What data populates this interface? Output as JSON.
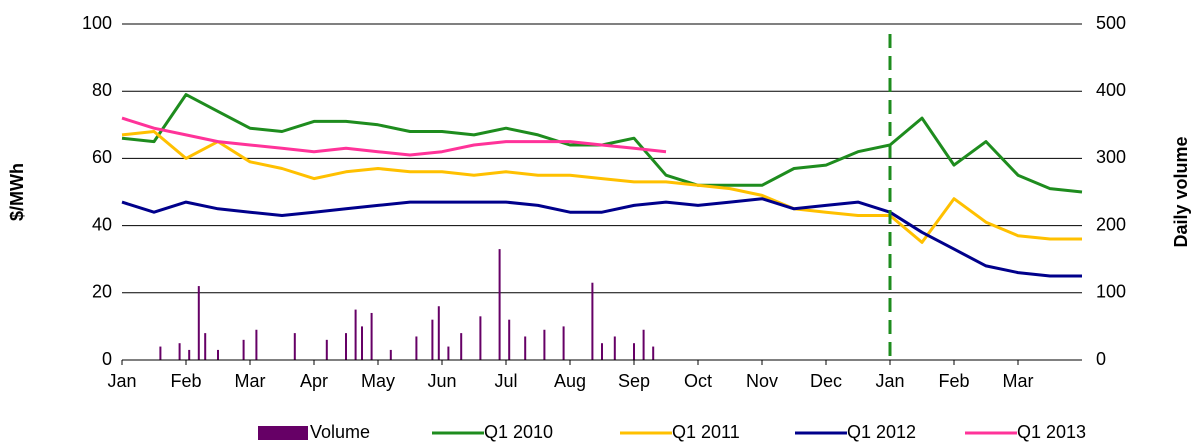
{
  "chart_data": {
    "type": "line",
    "y_label": "$/MWh",
    "y2_label": "Daily volume",
    "xlim": [
      0,
      15
    ],
    "xticks": [
      {
        "value": 0,
        "label": "Jan"
      },
      {
        "value": 1,
        "label": "Feb"
      },
      {
        "value": 2,
        "label": "Mar"
      },
      {
        "value": 3,
        "label": "Apr"
      },
      {
        "value": 4,
        "label": "May"
      },
      {
        "value": 5,
        "label": "Jun"
      },
      {
        "value": 6,
        "label": "Jul"
      },
      {
        "value": 7,
        "label": "Aug"
      },
      {
        "value": 8,
        "label": "Sep"
      },
      {
        "value": 9,
        "label": "Oct"
      },
      {
        "value": 10,
        "label": "Nov"
      },
      {
        "value": 11,
        "label": "Dec"
      },
      {
        "value": 12,
        "label": "Jan"
      },
      {
        "value": 13,
        "label": "Feb"
      },
      {
        "value": 14,
        "label": "Mar"
      }
    ],
    "ylim": [
      0,
      100
    ],
    "yticks": [
      0,
      20,
      40,
      60,
      80,
      100
    ],
    "y2lim": [
      0,
      500
    ],
    "y2ticks": [
      0,
      100,
      200,
      300,
      400,
      500
    ],
    "grid": true,
    "vline": {
      "x": 12,
      "color": "#1e8c1e"
    },
    "x": [
      0,
      0.5,
      1,
      1.5,
      2,
      2.5,
      3,
      3.5,
      4,
      4.5,
      5,
      5.5,
      6,
      6.5,
      7,
      7.5,
      8,
      8.5,
      9,
      9.5,
      10,
      10.5,
      11,
      11.5,
      12,
      12.5,
      13,
      13.5,
      14,
      14.5,
      15
    ],
    "series": [
      {
        "name": "Volume",
        "type": "bar",
        "axis": "y2",
        "color": "#660066",
        "x": [
          0.6,
          0.9,
          1.05,
          1.2,
          1.3,
          1.5,
          1.9,
          2.1,
          2.7,
          3.2,
          3.5,
          3.65,
          3.75,
          3.9,
          4.2,
          4.6,
          4.85,
          4.95,
          5.1,
          5.3,
          5.6,
          5.9,
          6.05,
          6.3,
          6.6,
          6.9,
          7.35,
          7.5,
          7.7,
          8.0,
          8.15,
          8.3
        ],
        "values": [
          20,
          25,
          15,
          110,
          40,
          15,
          30,
          45,
          40,
          30,
          40,
          75,
          50,
          70,
          15,
          35,
          60,
          80,
          20,
          40,
          65,
          165,
          60,
          35,
          45,
          50,
          115,
          25,
          35,
          25,
          45,
          20
        ]
      },
      {
        "name": "Q1 2010",
        "color": "#1e8c1e",
        "values": [
          66,
          65,
          79,
          74,
          69,
          68,
          71,
          71,
          70,
          68,
          68,
          67,
          69,
          67,
          64,
          64,
          66,
          55,
          52,
          52,
          52,
          57,
          58,
          62,
          64,
          72,
          58,
          65,
          55,
          51,
          50
        ]
      },
      {
        "name": "Q1 2011",
        "color": "#ffc000",
        "values": [
          67,
          68,
          60,
          65,
          59,
          57,
          54,
          56,
          57,
          56,
          56,
          55,
          56,
          55,
          55,
          54,
          53,
          53,
          52,
          51,
          49,
          45,
          44,
          43,
          43,
          35,
          48,
          41,
          37,
          36,
          36
        ]
      },
      {
        "name": "Q1 2012",
        "color": "#00008b",
        "values": [
          47,
          44,
          47,
          45,
          44,
          43,
          44,
          45,
          46,
          47,
          47,
          47,
          47,
          46,
          44,
          44,
          46,
          47,
          46,
          47,
          48,
          45,
          46,
          47,
          44,
          38,
          33,
          28,
          26,
          25,
          25
        ]
      },
      {
        "name": "Q1 2013",
        "color": "#ff3399",
        "values": [
          72,
          69,
          67,
          65,
          64,
          63,
          62,
          63,
          62,
          61,
          62,
          64,
          65,
          65,
          65,
          64,
          63,
          62,
          null,
          null,
          null,
          null,
          null,
          null,
          null,
          null,
          null,
          null,
          null,
          null,
          null
        ]
      }
    ]
  }
}
